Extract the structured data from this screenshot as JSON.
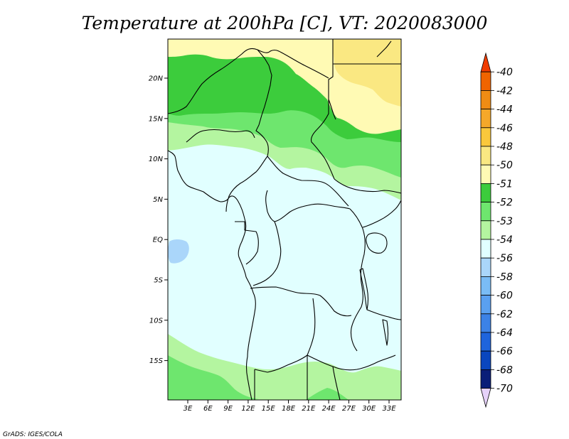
{
  "title": "Temperature at 200hPa [C], VT: 2020083000",
  "credit": "GrADS: IGES/COLA",
  "map": {
    "lat_labels": [
      "20N",
      "15N",
      "10N",
      "5N",
      "EQ",
      "5S",
      "10S",
      "15S"
    ],
    "lon_labels": [
      "3E",
      "6E",
      "9E",
      "12E",
      "15E",
      "18E",
      "21E",
      "24E",
      "27E",
      "30E",
      "33E"
    ]
  },
  "colorbar": {
    "levels": [
      "-40",
      "-42",
      "-44",
      "-46",
      "-48",
      "-50",
      "-51",
      "-52",
      "-53",
      "-54",
      "-56",
      "-58",
      "-60",
      "-62",
      "-64",
      "-66",
      "-68",
      "-70"
    ],
    "colors": [
      "#f03c00",
      "#f06400",
      "#f08c14",
      "#f5a82a",
      "#fac83c",
      "#fae882",
      "#fffab4",
      "#3ccc3c",
      "#6ee66e",
      "#b4f5a0",
      "#e1ffff",
      "#aad6fa",
      "#7abcf5",
      "#5aa0f0",
      "#3c82e6",
      "#1e64dc",
      "#0a46be",
      "#0a1e78",
      "#e6d2fa"
    ]
  },
  "fill_colors": {
    "ge_minus50": "#fae882",
    "minus50_to_minus51": "#fffab4",
    "minus51_to_minus52": "#3ccc3c",
    "minus52_to_minus53": "#6ee66e",
    "minus53_to_minus54": "#b4f5a0",
    "minus54_to_minus56": "#e1ffff",
    "minus56_to_minus58": "#aad6fa"
  }
}
